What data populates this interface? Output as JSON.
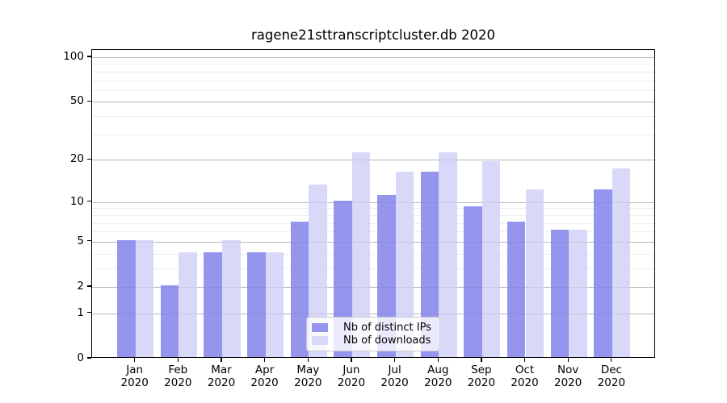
{
  "chart_data": {
    "type": "bar",
    "title": "ragene21sttranscriptcluster.db 2020",
    "categories": [
      "Jan",
      "Feb",
      "Mar",
      "Apr",
      "May",
      "Jun",
      "Jul",
      "Aug",
      "Sep",
      "Oct",
      "Nov",
      "Dec"
    ],
    "x_tick_year": "2020",
    "series": [
      {
        "name": "Nb of distinct IPs",
        "color": "#9595ee",
        "values": [
          5,
          2,
          4,
          4,
          7,
          10,
          11,
          16,
          9,
          7,
          6,
          12
        ]
      },
      {
        "name": "Nb of downloads",
        "color": "#d8d8f8",
        "values": [
          5,
          4,
          5,
          4,
          13,
          22,
          16,
          22,
          19,
          12,
          6,
          17
        ]
      }
    ],
    "y_axis": {
      "scale": "log10(value+1)",
      "major_ticks": [
        0,
        1,
        2,
        5,
        10,
        20,
        50,
        100
      ],
      "minor_ticks": [
        3,
        4,
        6,
        7,
        8,
        9,
        30,
        40,
        60,
        70,
        80,
        90
      ],
      "top_tick_value": 100
    },
    "legend": {
      "position": "lower center",
      "entries": [
        "Nb of distinct IPs",
        "Nb of downloads"
      ]
    },
    "grid": "on"
  },
  "colors": {
    "grid_major": "#c5c5c5",
    "grid_minor": "#ededed",
    "spine": "#000000",
    "text": "#000000",
    "background": "#ffffff"
  }
}
